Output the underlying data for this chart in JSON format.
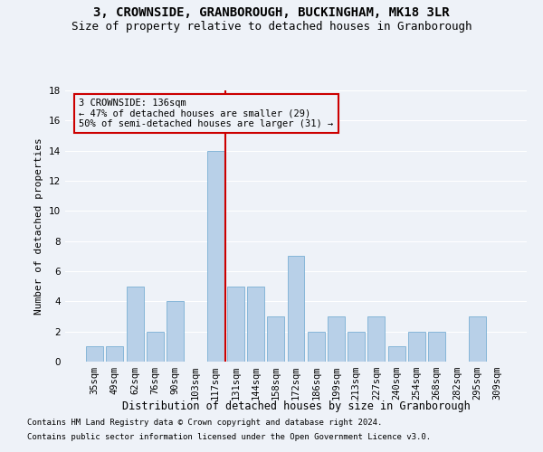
{
  "title": "3, CROWNSIDE, GRANBOROUGH, BUCKINGHAM, MK18 3LR",
  "subtitle": "Size of property relative to detached houses in Granborough",
  "xlabel": "Distribution of detached houses by size in Granborough",
  "ylabel": "Number of detached properties",
  "categories": [
    "35sqm",
    "49sqm",
    "62sqm",
    "76sqm",
    "90sqm",
    "103sqm",
    "117sqm",
    "131sqm",
    "144sqm",
    "158sqm",
    "172sqm",
    "186sqm",
    "199sqm",
    "213sqm",
    "227sqm",
    "240sqm",
    "254sqm",
    "268sqm",
    "282sqm",
    "295sqm",
    "309sqm"
  ],
  "values": [
    1,
    1,
    5,
    2,
    4,
    0,
    14,
    5,
    5,
    3,
    7,
    2,
    3,
    2,
    3,
    1,
    2,
    2,
    0,
    3,
    0
  ],
  "bar_color": "#b8d0e8",
  "bar_edgecolor": "#7aafd4",
  "vline_color": "#cc0000",
  "vline_x": 6.5,
  "annotation_text": "3 CROWNSIDE: 136sqm\n← 47% of detached houses are smaller (29)\n50% of semi-detached houses are larger (31) →",
  "annotation_box_edgecolor": "#cc0000",
  "ylim": [
    0,
    18
  ],
  "yticks": [
    0,
    2,
    4,
    6,
    8,
    10,
    12,
    14,
    16,
    18
  ],
  "footer1": "Contains HM Land Registry data © Crown copyright and database right 2024.",
  "footer2": "Contains public sector information licensed under the Open Government Licence v3.0.",
  "title_fontsize": 10,
  "subtitle_fontsize": 9,
  "xlabel_fontsize": 8.5,
  "ylabel_fontsize": 8,
  "tick_fontsize": 7.5,
  "annotation_fontsize": 7.5,
  "footer_fontsize": 6.5,
  "background_color": "#eef2f8",
  "grid_color": "#ffffff"
}
